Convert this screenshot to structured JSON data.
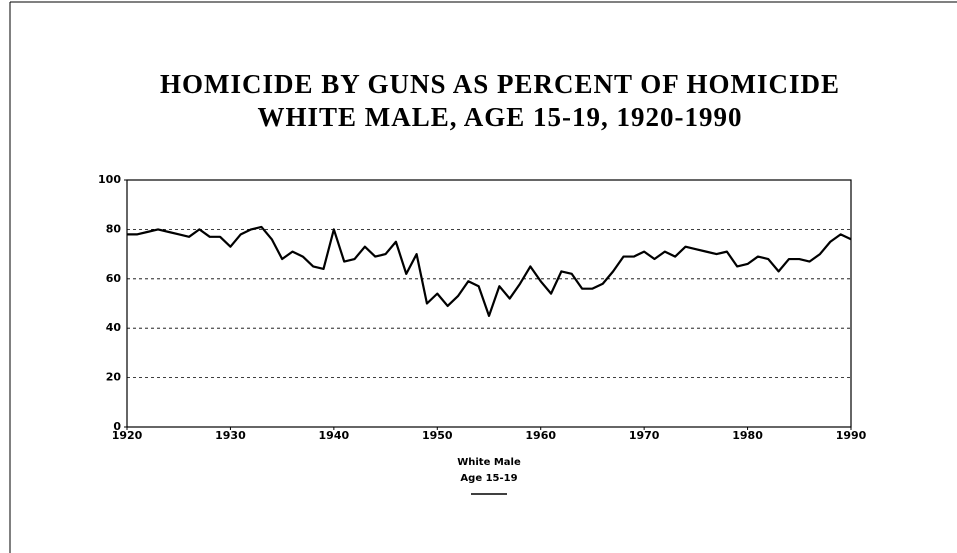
{
  "chart_data": {
    "type": "line",
    "title": [
      "HOMICIDE BY GUNS AS PERCENT OF HOMICIDE",
      "WHITE MALE, AGE 15-19, 1920-1990"
    ],
    "x": [
      1920,
      1921,
      1922,
      1923,
      1924,
      1925,
      1926,
      1927,
      1928,
      1929,
      1930,
      1931,
      1932,
      1933,
      1934,
      1935,
      1936,
      1937,
      1938,
      1939,
      1940,
      1941,
      1942,
      1943,
      1944,
      1945,
      1946,
      1947,
      1948,
      1949,
      1950,
      1951,
      1952,
      1953,
      1954,
      1955,
      1956,
      1957,
      1958,
      1959,
      1960,
      1961,
      1962,
      1963,
      1964,
      1965,
      1966,
      1967,
      1968,
      1969,
      1970,
      1971,
      1972,
      1973,
      1974,
      1975,
      1976,
      1977,
      1978,
      1979,
      1980,
      1981,
      1982,
      1983,
      1984,
      1985,
      1986,
      1987,
      1988,
      1989,
      1990
    ],
    "series": [
      {
        "name": "White Male",
        "legend_subtitle": "Age 15-19",
        "color": "#000000",
        "values": [
          78,
          78,
          79,
          80,
          79,
          78,
          77,
          80,
          77,
          77,
          73,
          78,
          80,
          81,
          76,
          68,
          71,
          69,
          65,
          64,
          80,
          67,
          68,
          73,
          69,
          70,
          75,
          62,
          70,
          50,
          54,
          49,
          53,
          59,
          57,
          45,
          57,
          52,
          58,
          65,
          59,
          54,
          63,
          62,
          56,
          56,
          58,
          63,
          69,
          69,
          71,
          68,
          71,
          69,
          73,
          72,
          71,
          70,
          71,
          65,
          66,
          69,
          68,
          63,
          68,
          68,
          67,
          70,
          75,
          78,
          76
        ]
      }
    ],
    "xlim": [
      1920,
      1990
    ],
    "xticks": [
      1920,
      1930,
      1940,
      1950,
      1960,
      1970,
      1980,
      1990
    ],
    "ylim": [
      0,
      100
    ],
    "yticks": [
      0,
      20,
      40,
      60,
      80,
      100
    ],
    "grid": true
  }
}
